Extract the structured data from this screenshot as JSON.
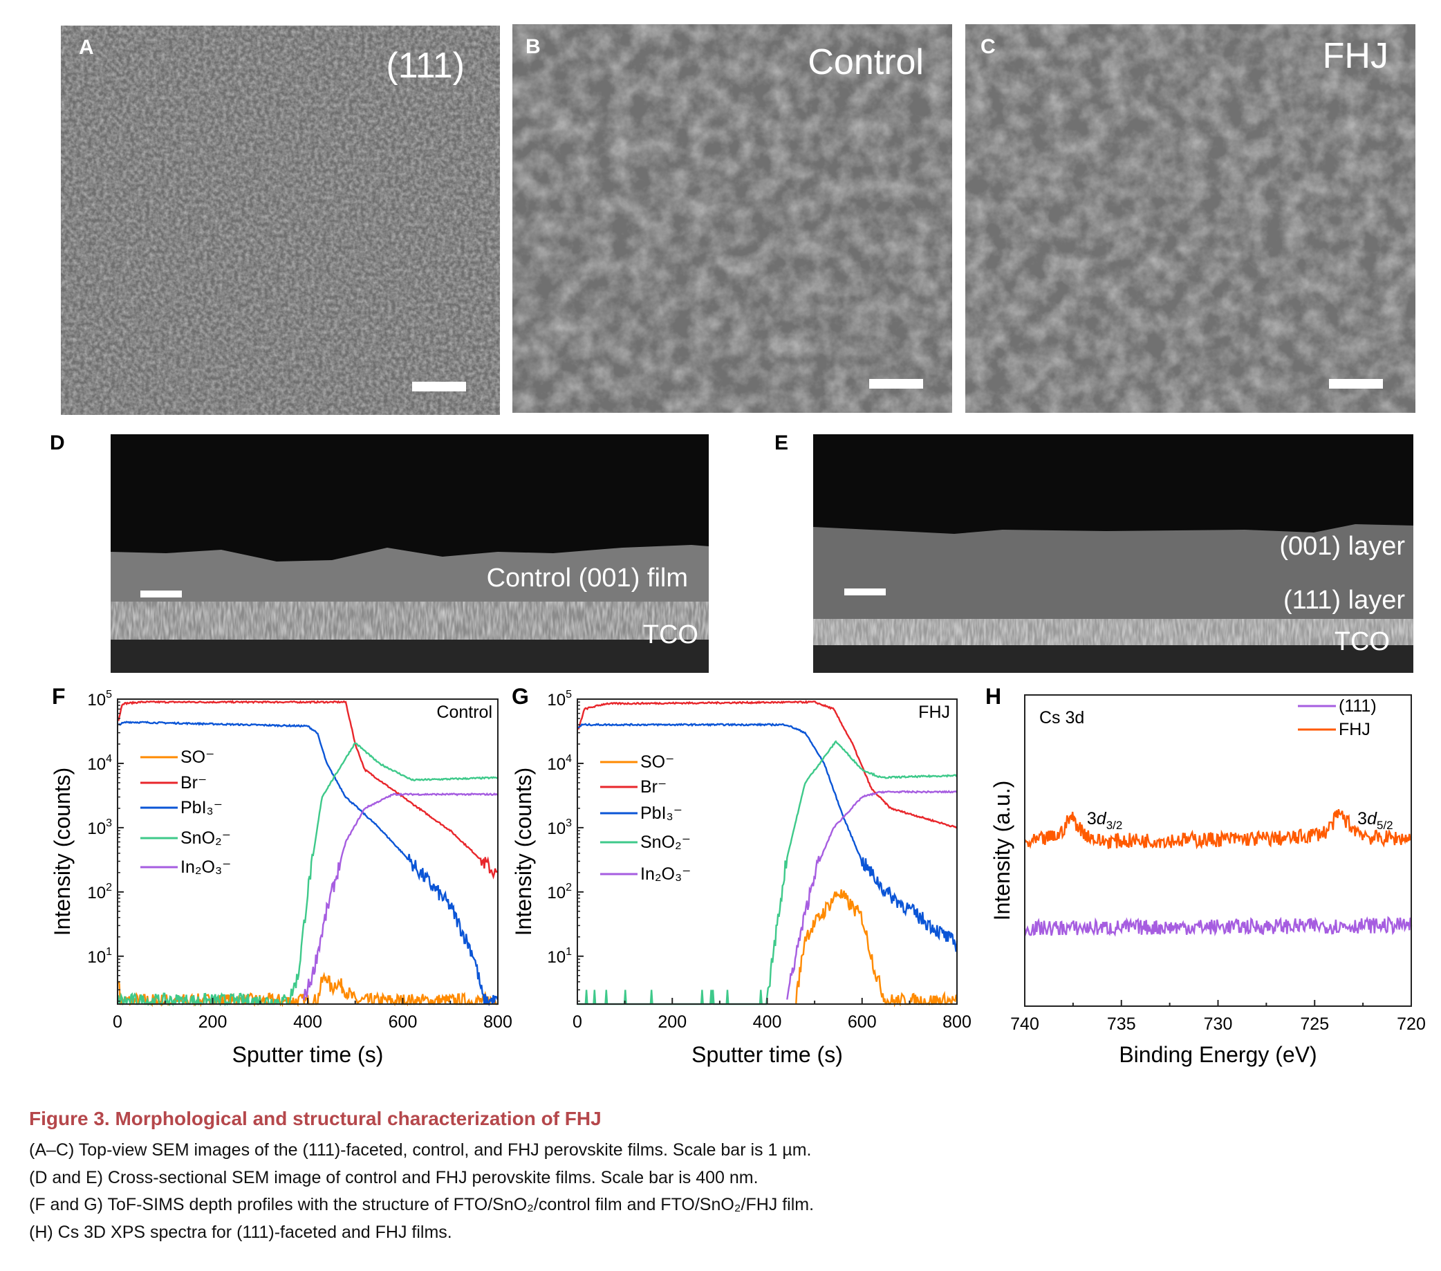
{
  "panels": {
    "A": {
      "letter": "A",
      "label": "(111)"
    },
    "B": {
      "letter": "B",
      "label": "Control"
    },
    "C": {
      "letter": "C",
      "label": "FHJ"
    },
    "D": {
      "letter": "D",
      "label": "Control (001) film",
      "tco": "TCO"
    },
    "E": {
      "letter": "E",
      "label1": "(001) layer",
      "label2": "(111) layer",
      "tco": "TCO"
    }
  },
  "colors": {
    "SO": "#ff8a00",
    "Br": "#e8262b",
    "PbI3": "#0b55d6",
    "SnO2": "#3ec98a",
    "In2O3": "#a65de0",
    "FHJ": "#ff5a00",
    "111": "#a65de0",
    "caption": "#b5474b"
  },
  "chart_data": [
    {
      "id": "F",
      "letter": "F",
      "type": "line",
      "title": "Control",
      "xlabel": "Sputter time (s)",
      "ylabel": "Intensity (counts)",
      "xlim": [
        0,
        800
      ],
      "ylim": [
        1.8,
        100000
      ],
      "yscale": "log",
      "xticks": [
        "0",
        "200",
        "400",
        "600",
        "800"
      ],
      "yticks_exp": [
        "1",
        "2",
        "3",
        "4",
        "5"
      ],
      "legend_position": "left",
      "series": [
        {
          "key": "SO",
          "name": "SO⁻",
          "points": [
            [
              0,
              10
            ],
            [
              5,
              2
            ],
            [
              420,
              2
            ],
            [
              430,
              4
            ],
            [
              440,
              5
            ],
            [
              450,
              3
            ],
            [
              460,
              4
            ],
            [
              480,
              3
            ],
            [
              500,
              2
            ],
            [
              510,
              2
            ],
            [
              800,
              2
            ]
          ]
        },
        {
          "key": "Br",
          "name": "Br⁻",
          "points": [
            [
              0,
              40000
            ],
            [
              10,
              85000
            ],
            [
              50,
              90000
            ],
            [
              480,
              90000
            ],
            [
              500,
              20000
            ],
            [
              520,
              8000
            ],
            [
              600,
              3000
            ],
            [
              700,
              900
            ],
            [
              800,
              180
            ]
          ]
        },
        {
          "key": "PbI3",
          "name": "PbI₃⁻",
          "points": [
            [
              0,
              40000
            ],
            [
              20,
              44000
            ],
            [
              400,
              38000
            ],
            [
              420,
              30000
            ],
            [
              440,
              10000
            ],
            [
              480,
              3000
            ],
            [
              550,
              1000
            ],
            [
              600,
              400
            ],
            [
              700,
              60
            ],
            [
              750,
              10
            ],
            [
              770,
              2
            ],
            [
              800,
              2
            ]
          ]
        },
        {
          "key": "SnO2",
          "name": "SnO₂⁻",
          "points": [
            [
              0,
              2
            ],
            [
              360,
              2
            ],
            [
              380,
              5
            ],
            [
              400,
              100
            ],
            [
              430,
              3000
            ],
            [
              500,
              21000
            ],
            [
              550,
              10000
            ],
            [
              620,
              5500
            ],
            [
              800,
              6000
            ]
          ]
        },
        {
          "key": "In2O3",
          "name": "In₂O₃⁻",
          "points": [
            [
              390,
              2
            ],
            [
              410,
              5
            ],
            [
              440,
              50
            ],
            [
              480,
              600
            ],
            [
              520,
              2000
            ],
            [
              580,
              3300
            ],
            [
              800,
              3300
            ]
          ]
        }
      ]
    },
    {
      "id": "G",
      "letter": "G",
      "type": "line",
      "title": "FHJ",
      "xlabel": "Sputter time (s)",
      "ylabel": "Intensity (counts)",
      "xlim": [
        0,
        800
      ],
      "ylim": [
        1.8,
        100000
      ],
      "yscale": "log",
      "xticks": [
        "0",
        "200",
        "400",
        "600",
        "800"
      ],
      "yticks_exp": [
        "1",
        "2",
        "3",
        "4",
        "5"
      ],
      "legend_position": "left",
      "series": [
        {
          "key": "SO",
          "name": "SO⁻",
          "points": [
            [
              460,
              2
            ],
            [
              480,
              20
            ],
            [
              550,
              100
            ],
            [
              600,
              40
            ],
            [
              630,
              5
            ],
            [
              650,
              2
            ],
            [
              800,
              2
            ]
          ]
        },
        {
          "key": "Br",
          "name": "Br⁻",
          "points": [
            [
              0,
              30000
            ],
            [
              15,
              70000
            ],
            [
              60,
              85000
            ],
            [
              500,
              90000
            ],
            [
              540,
              70000
            ],
            [
              580,
              20000
            ],
            [
              620,
              4000
            ],
            [
              660,
              2000
            ],
            [
              800,
              1000
            ]
          ]
        },
        {
          "key": "PbI3",
          "name": "PbI₃⁻",
          "points": [
            [
              0,
              35000
            ],
            [
              10,
              40000
            ],
            [
              440,
              40000
            ],
            [
              480,
              30000
            ],
            [
              520,
              10000
            ],
            [
              560,
              1500
            ],
            [
              600,
              300
            ],
            [
              650,
              100
            ],
            [
              800,
              15
            ]
          ]
        },
        {
          "key": "SnO2",
          "name": "SnO₂⁻",
          "points": [
            [
              400,
              2
            ],
            [
              410,
              8
            ],
            [
              440,
              300
            ],
            [
              480,
              5000
            ],
            [
              545,
              22000
            ],
            [
              600,
              8000
            ],
            [
              640,
              6000
            ],
            [
              800,
              6500
            ]
          ]
        },
        {
          "key": "In2O3",
          "name": "In₂O₃⁻",
          "points": [
            [
              440,
              2
            ],
            [
              460,
              10
            ],
            [
              500,
              200
            ],
            [
              540,
              1000
            ],
            [
              600,
              3000
            ],
            [
              640,
              3600
            ],
            [
              800,
              3600
            ]
          ]
        }
      ]
    },
    {
      "id": "H",
      "letter": "H",
      "type": "line",
      "title": "Cs 3d",
      "xlabel": "Binding Energy (eV)",
      "ylabel": "Intensity (a.u.)",
      "xlim": [
        740,
        720
      ],
      "ylim": [
        0,
        1
      ],
      "xticks": [
        "740",
        "735",
        "730",
        "725",
        "720"
      ],
      "legend_position": "top-right",
      "annotations": [
        {
          "text": "3d",
          "sub": "3/2",
          "x": 737.5
        },
        {
          "text": "3d",
          "sub": "5/2",
          "x": 723.5
        }
      ],
      "series": [
        {
          "key": "111",
          "name": "(111)",
          "points": [
            [
              740,
              0.25
            ],
            [
              720,
              0.26
            ]
          ]
        },
        {
          "key": "FHJ",
          "name": "FHJ",
          "points": [
            [
              740,
              0.52
            ],
            [
              738.2,
              0.55
            ],
            [
              737.6,
              0.61
            ],
            [
              737.0,
              0.56
            ],
            [
              736.2,
              0.53
            ],
            [
              726,
              0.54
            ],
            [
              724.4,
              0.56
            ],
            [
              723.7,
              0.62
            ],
            [
              723.0,
              0.57
            ],
            [
              722,
              0.54
            ],
            [
              720,
              0.54
            ]
          ]
        }
      ]
    }
  ],
  "caption": {
    "title": "Figure 3.  Morphological and structural characterization of FHJ",
    "lines": [
      "(A–C) Top-view SEM images of the (111)-faceted, control, and FHJ perovskite films. Scale bar is 1 µm.",
      "(D and E) Cross-sectional SEM image of control and FHJ perovskite films. Scale bar is 400 nm.",
      "(F and G) ToF-SIMS depth profiles with the structure of FTO/SnO₂/control film and FTO/SnO₂/FHJ film.",
      "(H) Cs 3D XPS spectra for (111)-faceted and FHJ films."
    ]
  }
}
